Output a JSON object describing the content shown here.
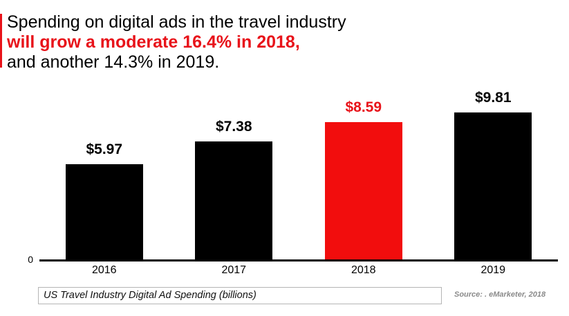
{
  "title": {
    "line1": "Spending on digital ads in the travel industry",
    "line2": "will grow a moderate 16.4% in 2018,",
    "line3": "and another 14.3% in 2019."
  },
  "colors": {
    "title_red": "#e8131a",
    "bar_red": "#f20d0d",
    "bar_black": "#000000",
    "source_gray": "#8a8a8a",
    "caption_border": "#b5b5b5"
  },
  "chart_data": {
    "type": "bar",
    "categories": [
      "2016",
      "2017",
      "2018",
      "2019"
    ],
    "values": [
      5.97,
      7.38,
      8.59,
      9.81
    ],
    "value_labels": [
      "$5.97",
      "$7.38",
      "$8.59",
      "$9.81"
    ],
    "bar_colors": [
      "#000000",
      "#000000",
      "#f20d0d",
      "#000000"
    ],
    "label_colors": [
      "#000000",
      "#000000",
      "#e8131a",
      "#000000"
    ],
    "highlight_index": 2,
    "title": "US Travel Industry Digital Ad Spending (billions)",
    "xlabel": "",
    "ylabel": "",
    "y_zero_tick": "0",
    "ylim": [
      0,
      10.6
    ],
    "grid": false,
    "legend": "none",
    "source": "Source: .   eMarketer, 2018"
  }
}
